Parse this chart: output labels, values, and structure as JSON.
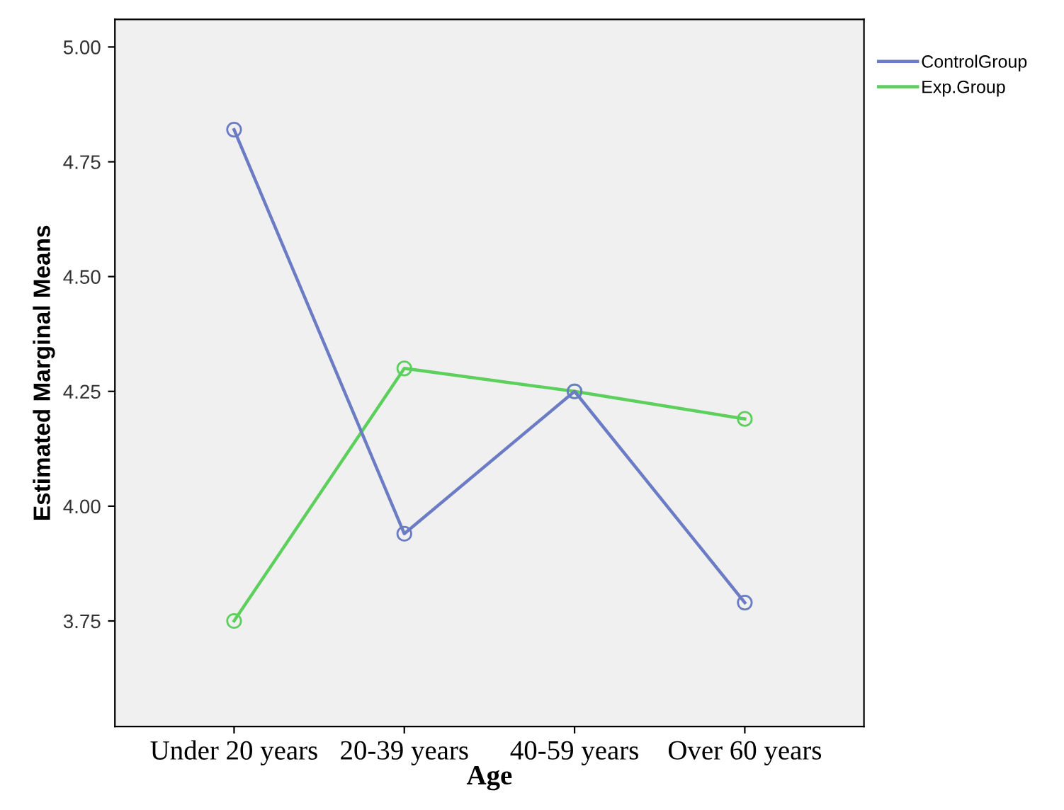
{
  "chart_data": {
    "type": "line",
    "xlabel": "Age",
    "ylabel": "Estimated Marginal Means",
    "categories": [
      "Under 20 years",
      "20-39 years",
      "40-59 years",
      "Over 60 years"
    ],
    "series": [
      {
        "name": "ControlGroup",
        "color": "#6b7cc4",
        "values": [
          4.82,
          3.94,
          4.25,
          3.79
        ]
      },
      {
        "name": "Exp.Group",
        "color": "#5ccf5c",
        "values": [
          3.75,
          4.3,
          4.25,
          4.19
        ]
      }
    ],
    "ylim": [
      3.52,
      5.06
    ],
    "yticks": [
      {
        "value": 3.75,
        "label": "3.75"
      },
      {
        "value": 4.0,
        "label": "4.00"
      },
      {
        "value": 4.25,
        "label": "4.25"
      },
      {
        "value": 4.5,
        "label": "4.50"
      },
      {
        "value": 4.75,
        "label": "4.75"
      },
      {
        "value": 5.0,
        "label": "5.00"
      }
    ],
    "marker": "circle",
    "line_style": "solid",
    "legend": "top right",
    "grid": false
  }
}
